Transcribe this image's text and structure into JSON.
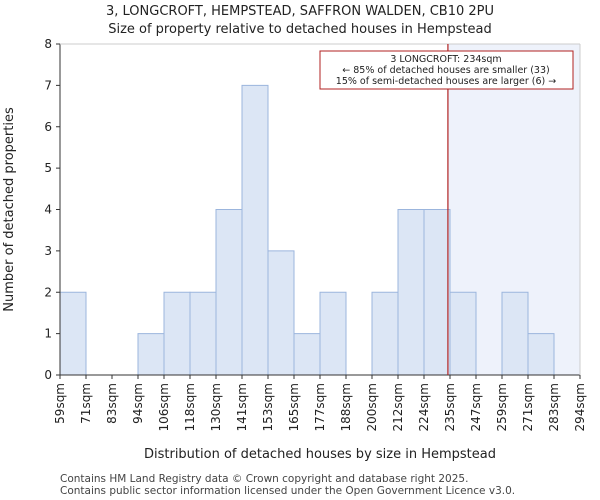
{
  "chart_data": {
    "type": "bar",
    "title_line1": "3, LONGCROFT, HEMPSTEAD, SAFFRON WALDEN, CB10 2PU",
    "title_line2": "Size of property relative to detached houses in Hempstead",
    "xlabel": "Distribution of detached houses by size in Hempstead",
    "ylabel": "Number of detached properties",
    "tick_labels": [
      "59sqm",
      "71sqm",
      "83sqm",
      "94sqm",
      "106sqm",
      "118sqm",
      "130sqm",
      "141sqm",
      "153sqm",
      "165sqm",
      "177sqm",
      "188sqm",
      "200sqm",
      "212sqm",
      "224sqm",
      "235sqm",
      "247sqm",
      "259sqm",
      "271sqm",
      "283sqm",
      "294sqm"
    ],
    "values": [
      2,
      0,
      0,
      1,
      2,
      2,
      4,
      7,
      3,
      1,
      2,
      0,
      2,
      4,
      4,
      2,
      0,
      2,
      1,
      0
    ],
    "ylim": [
      0,
      8
    ],
    "yticks": [
      0,
      1,
      2,
      3,
      4,
      5,
      6,
      7,
      8
    ],
    "marker_value_sqm": 234,
    "marker_bin_position": 14.92,
    "annotation": {
      "line1": "3 LONGCROFT: 234sqm",
      "line2": "← 85% of detached houses are smaller (33)",
      "line3": "15% of semi-detached houses are larger (6) →"
    },
    "colors": {
      "bar_fill": "#dce6f5",
      "bar_stroke": "#9bb5dd",
      "highlight_bg": "#eef2fb",
      "marker": "#b22222",
      "axis": "#333333"
    }
  },
  "footer": {
    "line1": "Contains HM Land Registry data © Crown copyright and database right 2025.",
    "line2": "Contains public sector information licensed under the Open Government Licence v3.0."
  }
}
